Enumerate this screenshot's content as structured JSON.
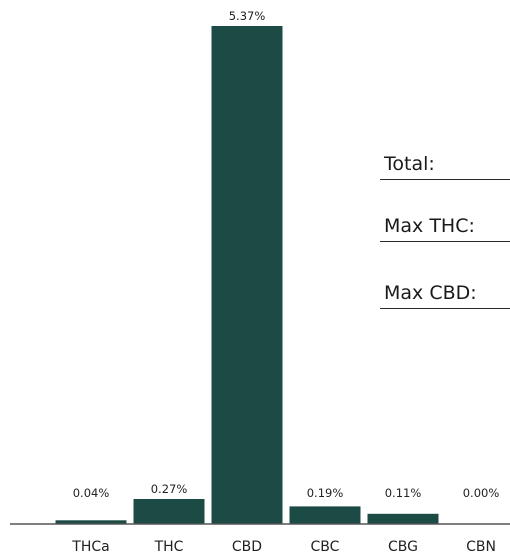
{
  "chart_data": {
    "type": "bar",
    "categories": [
      "THCa",
      "THC",
      "CBD",
      "CBC",
      "CBG",
      "CBN"
    ],
    "values": [
      0.04,
      0.27,
      5.37,
      0.19,
      0.11,
      0.0
    ],
    "data_labels": [
      "0.04%",
      "0.27%",
      "5.37%",
      "0.19%",
      "0.11%",
      "0.00%"
    ],
    "title": "",
    "xlabel": "",
    "ylabel": "",
    "ylim": [
      0,
      5.37
    ],
    "grid": false,
    "bar_color": "#1c4a44"
  },
  "summary": {
    "total_label": "Total:",
    "max_thc_label": "Max THC:",
    "max_cbd_label": "Max CBD:"
  }
}
